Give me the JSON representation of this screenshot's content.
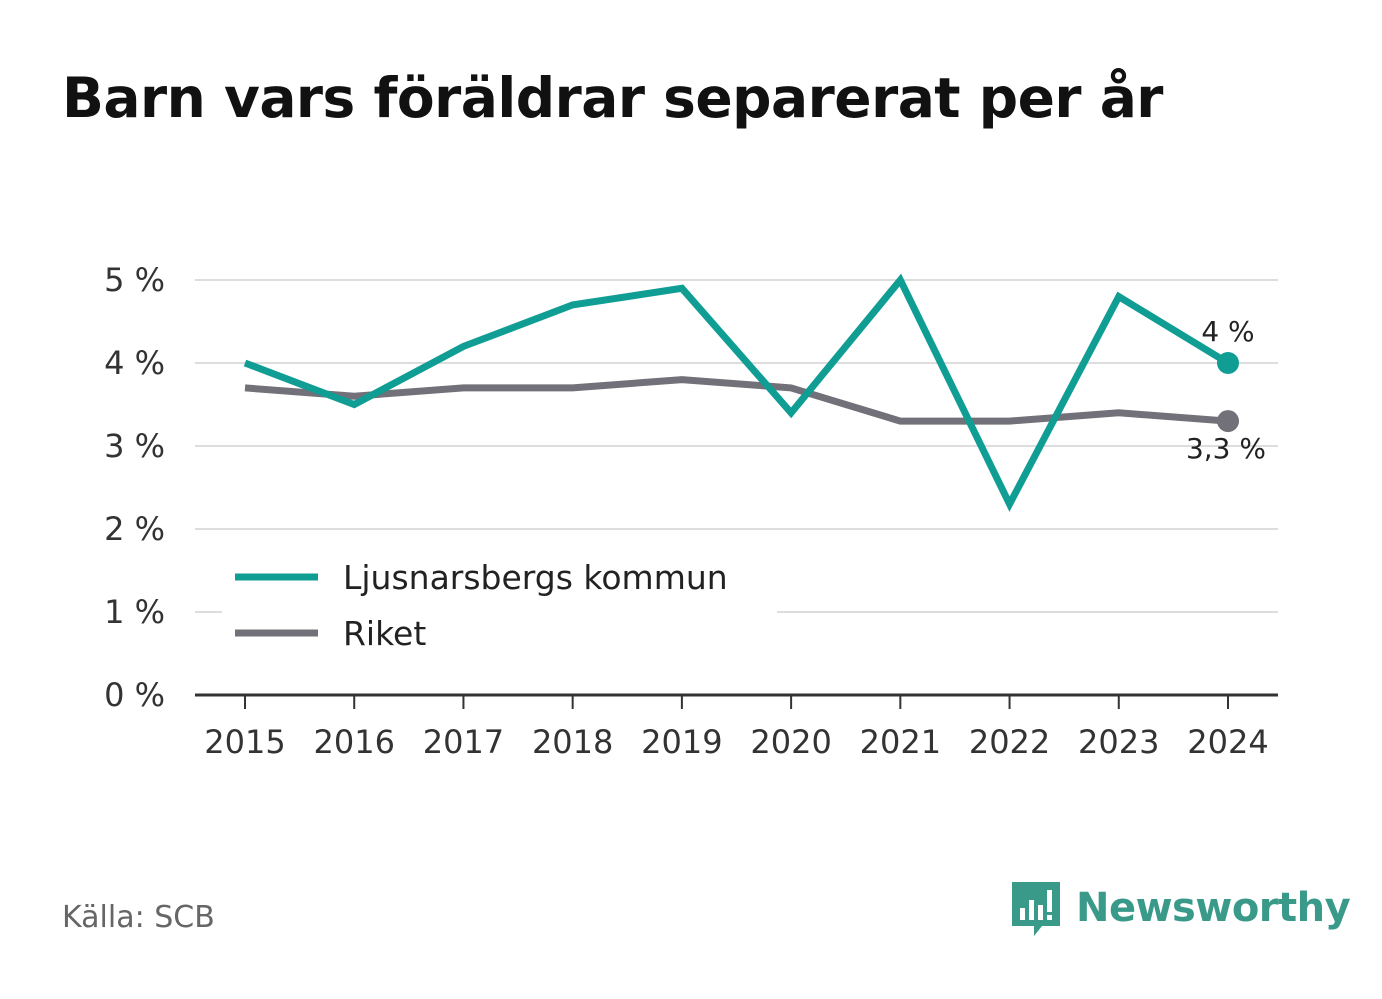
{
  "chart_data": {
    "type": "line",
    "title": "Barn vars föräldrar separerat per år",
    "x": [
      "2015",
      "2016",
      "2017",
      "2018",
      "2019",
      "2020",
      "2021",
      "2022",
      "2023",
      "2024"
    ],
    "series": [
      {
        "name": "Ljusnarsbergs kommun",
        "color": "#0f9d94",
        "values": [
          4.0,
          3.5,
          4.2,
          4.7,
          4.9,
          3.4,
          5.0,
          2.3,
          4.8,
          4.0
        ],
        "end_label": "4 %"
      },
      {
        "name": "Riket",
        "color": "#727078",
        "values": [
          3.7,
          3.6,
          3.7,
          3.7,
          3.8,
          3.7,
          3.3,
          3.3,
          3.4,
          3.3
        ],
        "end_label": "3,3 %"
      }
    ],
    "y_ticks": [
      "0 %",
      "1 %",
      "2 %",
      "3 %",
      "4 %",
      "5 %"
    ],
    "ylim": [
      0,
      5
    ],
    "grid": true,
    "legend_position": "bottom-left"
  },
  "footer": {
    "source": "Källa: SCB",
    "brand": "Newsworthy",
    "brand_color": "#3a9a8a"
  }
}
